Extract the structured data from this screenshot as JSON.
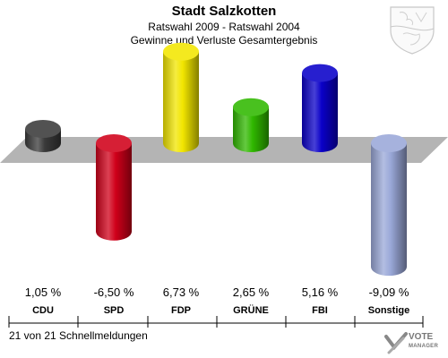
{
  "header": {
    "title": "Stadt Salzkotten",
    "subtitle": "Ratswahl 2009 - Ratswahl 2004",
    "subtitle2": "Gewinne und Verluste Gesamtergebnis"
  },
  "footer": {
    "status": "21 von 21 Schnellmeldungen",
    "logo_main": "VOTE",
    "logo_sub": "MANAGER"
  },
  "colors": {
    "CDU": "#3a3a3a",
    "SPD": "#d0001a",
    "FDP": "#f2e600",
    "GRÜNE": "#30b800",
    "FBI": "#0a00c8",
    "Sonstige": "#9aa8d8",
    "baseline": "#b4b4b4"
  },
  "chart_data": {
    "type": "bar",
    "categories": [
      "CDU",
      "SPD",
      "FDP",
      "GRÜNE",
      "FBI",
      "Sonstige"
    ],
    "values": [
      1.05,
      -6.5,
      6.73,
      2.65,
      5.16,
      -9.09
    ],
    "value_labels": [
      "1,05 %",
      "-6,50 %",
      "6,73 %",
      "2,65 %",
      "5,16 %",
      "-9,09 %"
    ],
    "title": "Stadt Salzkotten",
    "subtitle": "Ratswahl 2009 - Ratswahl 2004",
    "xlabel": "",
    "ylabel": "",
    "ylim": [
      -10,
      8
    ],
    "grid": false,
    "legend": "none"
  }
}
